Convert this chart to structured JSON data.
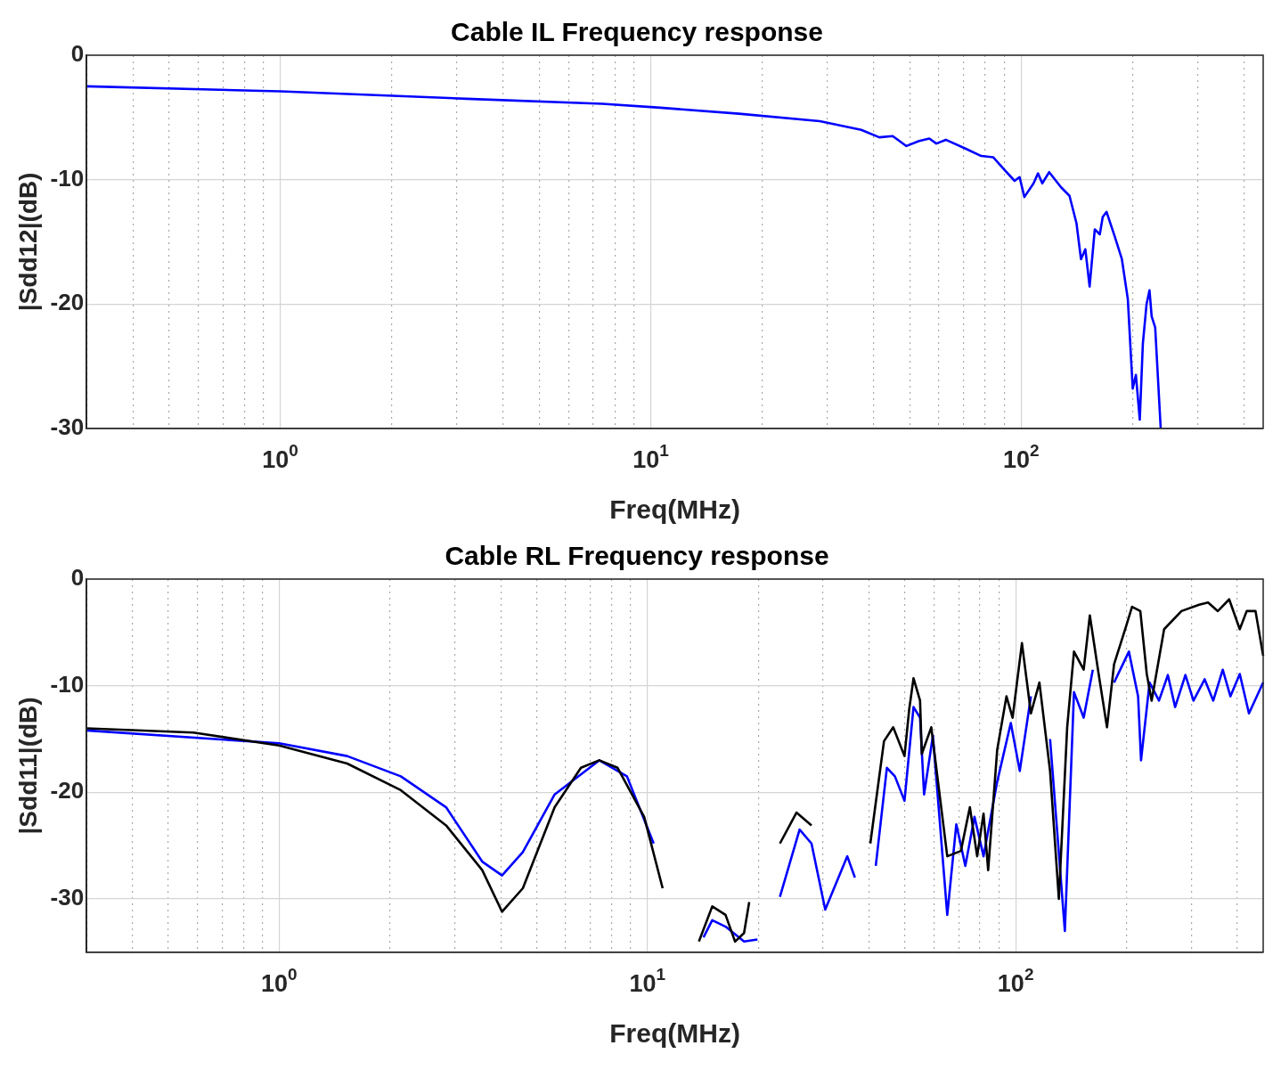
{
  "chart_data": [
    {
      "type": "line",
      "title": "Cable IL Frequency response",
      "xlabel": "Freq(MHz)",
      "ylabel": "|Sdd12|(dB)",
      "log": "x",
      "xlim": [
        0.3,
        450
      ],
      "ylim": [
        -30,
        0
      ],
      "yticks": [
        -30,
        -20,
        -10,
        0
      ],
      "xticks": [
        {
          "value": 0.3,
          "label": null
        },
        {
          "value": 0.4,
          "label": null
        },
        {
          "value": 0.5,
          "label": null
        },
        {
          "value": 0.6,
          "label": null
        },
        {
          "value": 0.7,
          "label": null
        },
        {
          "value": 0.8,
          "label": null
        },
        {
          "value": 0.9,
          "label": null
        },
        {
          "value": 1,
          "label": "10$^{0}$"
        },
        {
          "value": 2,
          "label": null
        },
        {
          "value": 3,
          "label": null
        },
        {
          "value": 4,
          "label": null
        },
        {
          "value": 5,
          "label": null
        },
        {
          "value": 6,
          "label": null
        },
        {
          "value": 7,
          "label": null
        },
        {
          "value": 8,
          "label": null
        },
        {
          "value": 9,
          "label": null
        },
        {
          "value": 10,
          "label": "10$^{1}$"
        },
        {
          "value": 20,
          "label": null
        },
        {
          "value": 30,
          "label": null
        },
        {
          "value": 40,
          "label": null
        },
        {
          "value": 50,
          "label": null
        },
        {
          "value": 60,
          "label": null
        },
        {
          "value": 70,
          "label": null
        },
        {
          "value": 80,
          "label": null
        },
        {
          "value": 90,
          "label": null
        },
        {
          "value": 100,
          "label": "10$^{2}$"
        },
        {
          "value": 200,
          "label": null
        },
        {
          "value": 300,
          "label": null
        },
        {
          "value": 400,
          "label": null
        }
      ],
      "grid": true,
      "legend": false,
      "series": [
        {
          "color": "#0000ff",
          "x": [
            0.3,
            1,
            3.18,
            7.4,
            10.4,
            17.3,
            28.6,
            37,
            41.4,
            45,
            49,
            53,
            56.5,
            59,
            62.6,
            70.7,
            78,
            84,
            90,
            96,
            99,
            102,
            108,
            111,
            114,
            119,
            128,
            135,
            141,
            145,
            149,
            153,
            158,
            163,
            166,
            170,
            179,
            187,
            194,
            200,
            204,
            209,
            213,
            218,
            222,
            225,
            230,
            238
          ],
          "values": [
            -2.5,
            -2.9,
            -3.5,
            -3.9,
            -4.2,
            -4.7,
            -5.3,
            -6.0,
            -6.6,
            -6.5,
            -7.3,
            -6.9,
            -6.7,
            -7.1,
            -6.8,
            -7.5,
            -8.1,
            -8.2,
            -9.2,
            -10.1,
            -9.8,
            -11.4,
            -10.3,
            -9.5,
            -10.3,
            -9.4,
            -10.6,
            -11.3,
            -13.5,
            -16.4,
            -15.6,
            -18.6,
            -14.0,
            -14.4,
            -13.0,
            -12.6,
            -14.6,
            -16.4,
            -19.6,
            -26.8,
            -25.7,
            -29.3,
            -23.2,
            -20.0,
            -18.9,
            -21.0,
            -21.9,
            -30
          ]
        }
      ]
    },
    {
      "type": "line",
      "title": "Cable RL Frequency response",
      "xlabel": "Freq(MHz)",
      "ylabel": "|Sdd11|(dB)",
      "log": "x",
      "xlim": [
        0.3,
        470
      ],
      "ylim": [
        -35,
        0
      ],
      "yticks": [
        -30,
        -20,
        -10,
        0
      ],
      "xticks": [
        {
          "value": 0.3,
          "label": null
        },
        {
          "value": 0.4,
          "label": null
        },
        {
          "value": 0.5,
          "label": null
        },
        {
          "value": 0.6,
          "label": null
        },
        {
          "value": 0.7,
          "label": null
        },
        {
          "value": 0.8,
          "label": null
        },
        {
          "value": 0.9,
          "label": null
        },
        {
          "value": 1,
          "label": "10$^{0}$"
        },
        {
          "value": 2,
          "label": null
        },
        {
          "value": 3,
          "label": null
        },
        {
          "value": 4,
          "label": null
        },
        {
          "value": 5,
          "label": null
        },
        {
          "value": 6,
          "label": null
        },
        {
          "value": 7,
          "label": null
        },
        {
          "value": 8,
          "label": null
        },
        {
          "value": 9,
          "label": null
        },
        {
          "value": 10,
          "label": "10$^{1}$"
        },
        {
          "value": 20,
          "label": null
        },
        {
          "value": 30,
          "label": null
        },
        {
          "value": 40,
          "label": null
        },
        {
          "value": 50,
          "label": null
        },
        {
          "value": 60,
          "label": null
        },
        {
          "value": 70,
          "label": null
        },
        {
          "value": 80,
          "label": null
        },
        {
          "value": 90,
          "label": null
        },
        {
          "value": 100,
          "label": "10$^{2}$"
        },
        {
          "value": 200,
          "label": null
        },
        {
          "value": 300,
          "label": null
        },
        {
          "value": 400,
          "label": null
        }
      ],
      "grid": true,
      "legend": false,
      "series": [
        {
          "color": "#000000",
          "x": [
            0.3,
            0.585,
            1,
            1.53,
            2.14,
            2.84,
            3.56,
            4.03,
            4.59,
            5.6,
            6.6,
            7.4,
            8.3,
            9.8,
            11.0,
            12.0,
            12.5,
            13.8,
            15.0,
            16.3,
            17.3,
            18.3,
            18.9,
            19.9,
            20.5,
            22.9,
            25.4,
            27.9,
            30.0,
            31,
            38.0,
            40.3,
            43.9,
            46.5,
            49.9,
            51.4,
            52.8,
            55.0,
            55.6,
            59.0,
            65.2,
            71.0,
            75.1,
            78.6,
            81.8,
            84.2,
            89.1,
            94.4,
            98.1,
            104,
            110,
            116,
            124,
            131,
            138,
            144,
            153,
            159,
            168,
            177,
            185,
            200,
            207,
            218,
            227,
            234,
            253,
            282,
            315,
            333,
            354,
            380,
            406,
            424,
            448,
            470
          ],
          "values": [
            -14.0,
            -14.4,
            -15.6,
            -17.3,
            -19.8,
            -23.1,
            -27.3,
            -31.2,
            -29.0,
            -21.4,
            -17.7,
            -17.0,
            -17.7,
            -22.3,
            -29.0,
            null,
            null,
            -34,
            -30.7,
            -31.5,
            -34,
            -33.2,
            -30.3,
            null,
            null,
            -24.8,
            -21.9,
            -23.1,
            null,
            null,
            null,
            -24.8,
            -15.2,
            -13.9,
            -16.6,
            -12.2,
            -9.3,
            -11.4,
            -16.4,
            -13.9,
            -26,
            -25.5,
            -21.4,
            -26,
            -22,
            -27.3,
            -16,
            -11,
            -13,
            -6,
            -12.6,
            -9.7,
            -18,
            -30,
            -13.9,
            -6.8,
            -8.5,
            -3.4,
            -8.9,
            -13.9,
            -8,
            -4.3,
            -2.6,
            -3,
            -8.9,
            -11.4,
            -4.7,
            -3,
            -2.4,
            -2.2,
            -3,
            -1.9,
            -4.7,
            -3,
            -3,
            -7.2
          ]
        },
        {
          "color": "#0000ff",
          "x": [
            0.3,
            1,
            1.53,
            2.14,
            2.84,
            3.56,
            4.03,
            4.59,
            5.6,
            7.4,
            8.8,
            10.4,
            12.0,
            13,
            14.2,
            15.0,
            16.3,
            18.3,
            19.9,
            20.8,
            21.5,
            22.9,
            25.9,
            27.9,
            30.4,
            34.9,
            36.6,
            38.7,
            39.5,
            41.7,
            44.7,
            47.0,
            49.9,
            52.8,
            55.0,
            56.4,
            59.6,
            65.2,
            69.0,
            73.0,
            77.3,
            81.8,
            89.1,
            97,
            102.6,
            110,
            117,
            124,
            136,
            144,
            153,
            162,
            171,
            181,
            185,
            203,
            215,
            219,
            231,
            245,
            259,
            271,
            289,
            304,
            326,
            344,
            365,
            383,
            406,
            430,
            470
          ],
          "values": [
            -14.2,
            -15.4,
            -16.6,
            -18.5,
            -21.4,
            -26.5,
            -27.8,
            -25.6,
            -20.2,
            -17,
            -18.5,
            -24.8,
            null,
            null,
            -33.6,
            -32,
            -32.6,
            -34,
            -33.8,
            null,
            null,
            -29.8,
            -23.5,
            -24.8,
            -31,
            -26,
            -28,
            null,
            null,
            -26.9,
            -17.7,
            -18.5,
            -20.8,
            -12,
            -13,
            -20.2,
            -14.7,
            -31.5,
            -23,
            -26.9,
            -22.3,
            -26,
            -19,
            -13.5,
            -18,
            -11,
            null,
            -15,
            -33,
            -10.6,
            -13,
            -8.5,
            null,
            null,
            -9.7,
            -6.8,
            -11,
            -17,
            -9.7,
            -11.4,
            -9,
            -12,
            -9,
            -11.4,
            -9.4,
            -11.4,
            -8.5,
            -11,
            -8.9,
            -12.6,
            -9.7
          ]
        }
      ]
    }
  ]
}
